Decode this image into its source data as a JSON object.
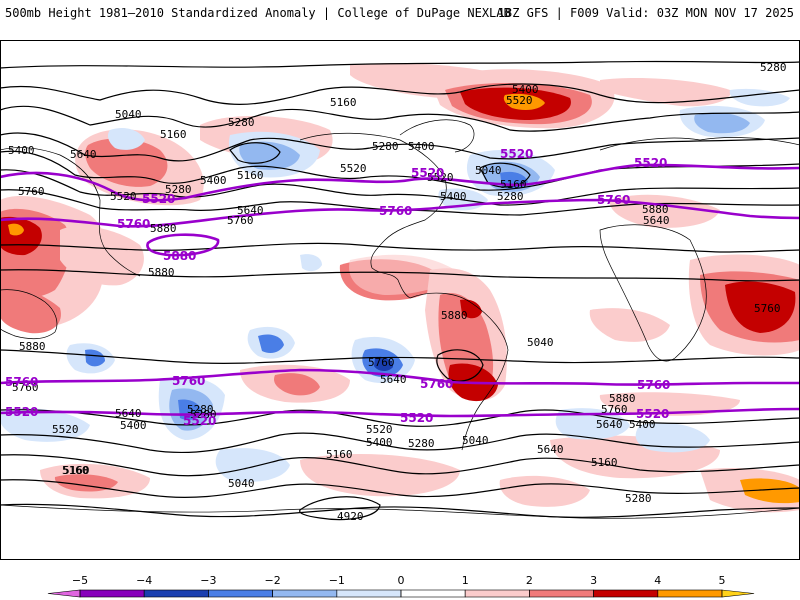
{
  "header": {
    "title": "500mb Height 1981–2010 Standardized Anomaly | College of DuPage NEXLAB",
    "run_info": "18Z GFS | F009 Valid: 03Z MON NOV 17 2025"
  },
  "colors": {
    "neg5": "#e066e0",
    "neg4": "#8800bb",
    "neg3": "#1a3fb0",
    "neg2": "#4a7ee6",
    "neg1": "#bcd6f7",
    "zero": "#ffffff",
    "pos1": "#fbcccc",
    "pos2": "#f29b9b",
    "pos3": "#e65656",
    "pos4": "#c40000",
    "pos5": "#ff9900",
    "highlight": "#9900cc"
  },
  "contour_labels": [
    "5280",
    "5400",
    "5160",
    "5040",
    "5520",
    "5640",
    "5760",
    "5880",
    "4920"
  ],
  "map_labels": [
    {
      "id": "l1",
      "text": "5280",
      "cls": "c"
    },
    {
      "id": "l2",
      "text": "5400",
      "cls": "c"
    },
    {
      "id": "l3",
      "text": "5520",
      "cls": "c"
    },
    {
      "id": "l4",
      "text": "5040",
      "cls": "c"
    },
    {
      "id": "l5",
      "text": "5160",
      "cls": "c"
    },
    {
      "id": "l6",
      "text": "5280",
      "cls": "c"
    },
    {
      "id": "l7",
      "text": "5400",
      "cls": "c"
    },
    {
      "id": "l8",
      "text": "5640",
      "cls": "c"
    },
    {
      "id": "l9",
      "text": "5160",
      "cls": "c"
    },
    {
      "id": "l10",
      "text": "5280",
      "cls": "c"
    },
    {
      "id": "l11",
      "text": "5400",
      "cls": "c"
    },
    {
      "id": "l12",
      "text": "5520",
      "cls": "c"
    },
    {
      "id": "l13",
      "text": "5160",
      "cls": "c"
    },
    {
      "id": "l14",
      "text": "5280",
      "cls": "c"
    },
    {
      "id": "l15",
      "text": "5400",
      "cls": "c"
    },
    {
      "id": "l16",
      "text": "5520",
      "cls": "c"
    },
    {
      "id": "l17",
      "text": "5640",
      "cls": "c"
    },
    {
      "id": "l18",
      "text": "5760",
      "cls": "c"
    },
    {
      "id": "l19",
      "text": "5880",
      "cls": "c"
    },
    {
      "id": "l20",
      "text": "5880",
      "cls": "c"
    },
    {
      "id": "l21",
      "text": "5760",
      "cls": "c"
    },
    {
      "id": "l22",
      "text": "5520",
      "cls": "c"
    },
    {
      "id": "l23",
      "text": "5400",
      "cls": "c"
    },
    {
      "id": "l24",
      "text": "5280",
      "cls": "c"
    },
    {
      "id": "l25",
      "text": "5160",
      "cls": "c"
    },
    {
      "id": "l26",
      "text": "5040",
      "cls": "c"
    },
    {
      "id": "l27",
      "text": "4920",
      "cls": "c"
    },
    {
      "id": "l28",
      "text": "5880",
      "cls": "c"
    },
    {
      "id": "l29",
      "text": "5760",
      "cls": "c"
    },
    {
      "id": "l30",
      "text": "5640",
      "cls": "c"
    },
    {
      "id": "l31",
      "text": "5520",
      "cls": "c"
    },
    {
      "id": "l32",
      "text": "5400",
      "cls": "c"
    },
    {
      "id": "l33",
      "text": "5280",
      "cls": "c"
    },
    {
      "id": "l34",
      "text": "5160",
      "cls": "c"
    },
    {
      "id": "l35",
      "text": "5040",
      "cls": "c"
    },
    {
      "id": "l36",
      "text": "5880",
      "cls": "c"
    },
    {
      "id": "l37",
      "text": "5760",
      "cls": "c"
    },
    {
      "id": "l38",
      "text": "5640",
      "cls": "c"
    },
    {
      "id": "l39",
      "text": "5520",
      "cls": "c"
    },
    {
      "id": "l40",
      "text": "5400",
      "cls": "c"
    },
    {
      "id": "l41",
      "text": "5280",
      "cls": "c"
    },
    {
      "id": "l42",
      "text": "5160",
      "cls": "c"
    },
    {
      "id": "l43",
      "text": "5040",
      "cls": "c"
    },
    {
      "id": "l44",
      "text": "5640",
      "cls": "c"
    },
    {
      "id": "l45",
      "text": "5760",
      "cls": "c"
    },
    {
      "id": "l46",
      "text": "5880",
      "cls": "c"
    },
    {
      "id": "l47",
      "text": "5040",
      "cls": "c"
    },
    {
      "id": "l48",
      "text": "5160",
      "cls": "c"
    },
    {
      "id": "l49",
      "text": "5280",
      "cls": "c"
    },
    {
      "id": "l50",
      "text": "5400",
      "cls": "c"
    },
    {
      "id": "l51",
      "text": "5640",
      "cls": "c"
    },
    {
      "id": "l52",
      "text": "5880",
      "cls": "c"
    },
    {
      "id": "l53",
      "text": "5760",
      "cls": "c"
    },
    {
      "id": "l54",
      "text": "5640",
      "cls": "c"
    },
    {
      "id": "l55",
      "text": "5160",
      "cls": "c"
    },
    {
      "id": "l56",
      "text": "5280",
      "cls": "c"
    },
    {
      "id": "p1",
      "text": "5520",
      "cls": "p"
    },
    {
      "id": "p2",
      "text": "5760",
      "cls": "p"
    },
    {
      "id": "p3",
      "text": "5880",
      "cls": "p"
    },
    {
      "id": "p4",
      "text": "5520",
      "cls": "p"
    },
    {
      "id": "p5",
      "text": "5760",
      "cls": "p"
    },
    {
      "id": "p6",
      "text": "5520",
      "cls": "p"
    },
    {
      "id": "p7",
      "text": "5760",
      "cls": "p"
    },
    {
      "id": "p8",
      "text": "5520",
      "cls": "p"
    },
    {
      "id": "p9",
      "text": "5760",
      "cls": "p"
    },
    {
      "id": "p10",
      "text": "5760",
      "cls": "p"
    },
    {
      "id": "p11",
      "text": "5520",
      "cls": "p"
    },
    {
      "id": "p12",
      "text": "5760",
      "cls": "p"
    },
    {
      "id": "p13",
      "text": "5760",
      "cls": "p"
    },
    {
      "id": "p14",
      "text": "5520",
      "cls": "p"
    },
    {
      "id": "p15",
      "text": "5520",
      "cls": "p"
    },
    {
      "id": "p16",
      "text": "5520",
      "cls": "p"
    }
  ],
  "colorbar": {
    "ticks": [
      {
        "label": "−5",
        "value": -5
      },
      {
        "label": "−4",
        "value": -4
      },
      {
        "label": "−3",
        "value": -3
      },
      {
        "label": "−2",
        "value": -2
      },
      {
        "label": "−1",
        "value": -1
      },
      {
        "label": "0",
        "value": 0
      },
      {
        "label": "1",
        "value": 1
      },
      {
        "label": "2",
        "value": 2
      },
      {
        "label": "3",
        "value": 3
      },
      {
        "label": "4",
        "value": 4
      },
      {
        "label": "5",
        "value": 5
      }
    ],
    "segments": [
      {
        "from": -5.5,
        "to": -5,
        "color": "#e066e0"
      },
      {
        "from": -5,
        "to": -4,
        "color": "#8800bb"
      },
      {
        "from": -4,
        "to": -3,
        "color": "#1a3fb0"
      },
      {
        "from": -3,
        "to": -2,
        "color": "#4a7ee6"
      },
      {
        "from": -2,
        "to": -1,
        "color": "#93b8f0"
      },
      {
        "from": -1,
        "to": 0,
        "color": "#d6e6fb"
      },
      {
        "from": 0,
        "to": 1,
        "color": "#ffffff"
      },
      {
        "from": 1,
        "to": 2,
        "color": "#fbcccc"
      },
      {
        "from": 2,
        "to": 3,
        "color": "#f07a7a"
      },
      {
        "from": 3,
        "to": 4,
        "color": "#c40000"
      },
      {
        "from": 4,
        "to": 5,
        "color": "#ff9900"
      },
      {
        "from": 5,
        "to": 5.5,
        "color": "#ffd21a"
      }
    ]
  }
}
